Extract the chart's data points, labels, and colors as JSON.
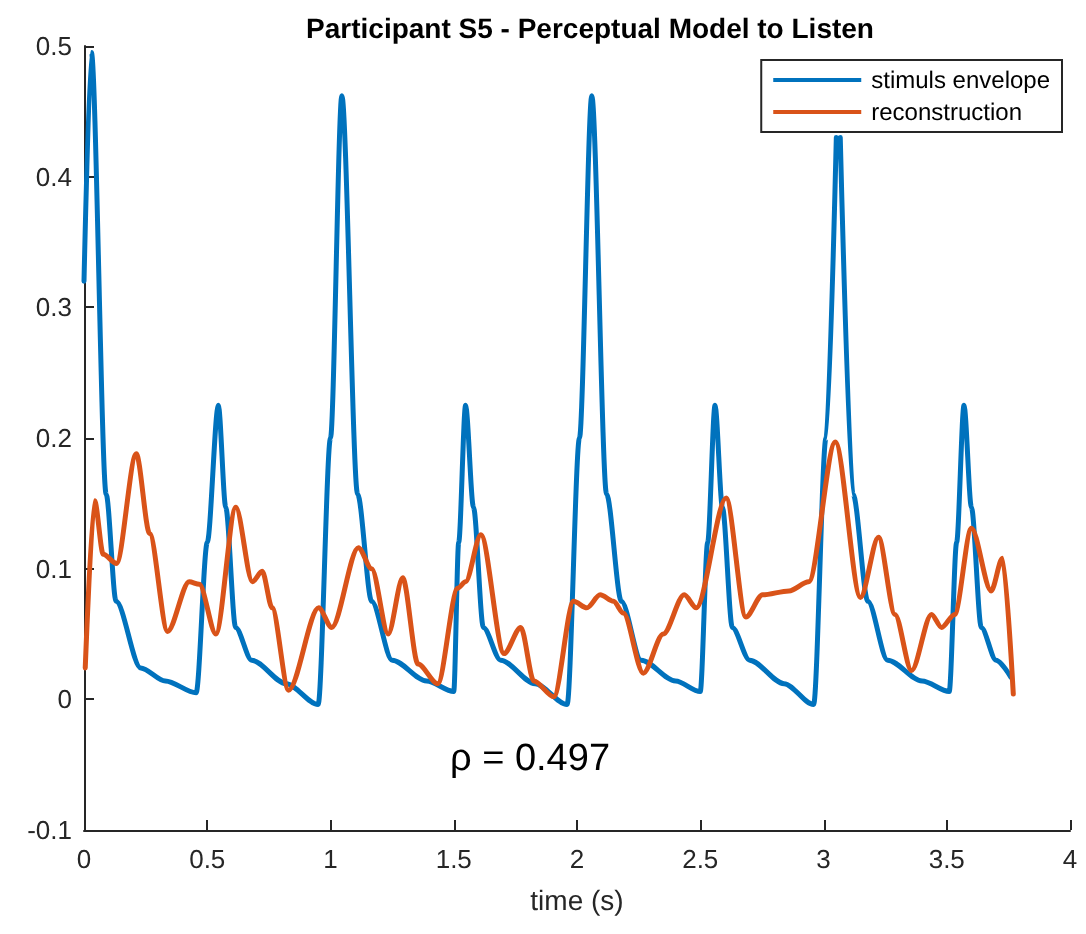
{
  "chart_data": {
    "type": "line",
    "title": "Participant S5 - Perceptual Model to Listen",
    "xlabel": "time (s)",
    "annotations": [
      "ρ = 0.497"
    ],
    "xlim": [
      0,
      4
    ],
    "xticks": [
      0,
      0.5,
      1,
      1.5,
      2,
      2.5,
      3,
      3.5,
      4
    ],
    "ylim": [
      -0.1,
      0.5
    ],
    "yticks": [
      -0.1,
      0,
      0.1,
      0.2,
      0.3,
      0.4,
      0.5
    ],
    "grid": false,
    "legend": "top right",
    "marker": "none",
    "line_style": "solid",
    "series": [
      {
        "name": "stimuls envelope",
        "color": "#0072bd",
        "x": [
          0,
          0.03,
          0.09,
          0.13,
          0.23,
          0.33,
          0.455,
          0.5,
          0.545,
          0.575,
          0.615,
          0.68,
          0.82,
          0.95,
          1.0,
          1.046,
          1.11,
          1.167,
          1.25,
          1.39,
          1.5,
          1.52,
          1.548,
          1.58,
          1.62,
          1.69,
          1.83,
          1.96,
          2.01,
          2.06,
          2.12,
          2.18,
          2.26,
          2.4,
          2.5,
          2.53,
          2.56,
          2.59,
          2.63,
          2.7,
          2.84,
          2.96,
          3.01,
          3.052,
          3.06,
          3.068,
          3.12,
          3.18,
          3.26,
          3.4,
          3.51,
          3.54,
          3.57,
          3.6,
          3.64,
          3.7,
          3.76
        ],
        "values": [
          0.32,
          0.495,
          0.157,
          0.075,
          0.024,
          0.014,
          0.005,
          0.12,
          0.225,
          0.147,
          0.055,
          0.03,
          0.012,
          -0.004,
          0.2,
          0.462,
          0.157,
          0.075,
          0.03,
          0.014,
          0.006,
          0.12,
          0.225,
          0.147,
          0.055,
          0.03,
          0.012,
          -0.004,
          0.2,
          0.462,
          0.157,
          0.075,
          0.03,
          0.014,
          0.006,
          0.12,
          0.225,
          0.147,
          0.055,
          0.03,
          0.012,
          -0.004,
          0.2,
          0.43,
          null,
          0.43,
          0.157,
          0.075,
          0.03,
          0.014,
          0.006,
          0.12,
          0.225,
          0.147,
          0.055,
          0.03,
          0.017
        ]
      },
      {
        "name": "reconstruction",
        "color": "#d95319",
        "x": [
          0.005,
          0.043,
          0.078,
          0.132,
          0.212,
          0.266,
          0.339,
          0.427,
          0.468,
          0.535,
          0.616,
          0.683,
          0.723,
          0.763,
          0.83,
          0.952,
          1.005,
          1.113,
          1.167,
          1.234,
          1.293,
          1.355,
          1.435,
          1.516,
          1.548,
          1.61,
          1.704,
          1.772,
          1.825,
          1.906,
          1.986,
          2.04,
          2.094,
          2.148,
          2.188,
          2.269,
          2.35,
          2.435,
          2.484,
          2.605,
          2.685,
          2.753,
          2.86,
          2.94,
          3.048,
          3.15,
          3.223,
          3.29,
          3.357,
          3.438,
          3.479,
          3.532,
          3.6,
          3.68,
          3.726,
          3.77
        ],
        "values": [
          0.024,
          0.152,
          0.111,
          0.104,
          0.188,
          0.127,
          0.052,
          0.09,
          0.088,
          0.05,
          0.147,
          0.09,
          0.098,
          0.07,
          0.007,
          0.07,
          0.055,
          0.116,
          0.1,
          0.05,
          0.093,
          0.027,
          0.012,
          0.085,
          0.09,
          0.126,
          0.035,
          0.055,
          0.014,
          0.002,
          0.075,
          0.07,
          0.08,
          0.075,
          0.066,
          0.02,
          0.05,
          0.08,
          0.07,
          0.154,
          0.063,
          0.08,
          0.083,
          0.09,
          0.197,
          0.078,
          0.124,
          0.065,
          0.022,
          0.065,
          0.055,
          0.065,
          0.131,
          0.083,
          0.108,
          0.004
        ]
      }
    ]
  }
}
